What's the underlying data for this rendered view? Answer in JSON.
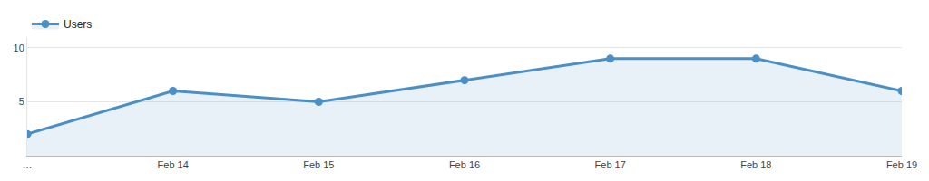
{
  "chart_data": {
    "type": "line",
    "categories": [
      "…",
      "Feb 14",
      "Feb 15",
      "Feb 16",
      "Feb 17",
      "Feb 18",
      "Feb 19"
    ],
    "series": [
      {
        "name": "Users",
        "color": "#4a8fc5",
        "values": [
          2,
          6,
          5,
          7,
          9,
          9,
          6
        ],
        "marker": "circle"
      }
    ],
    "ylim": [
      0,
      11
    ],
    "yticks": [
      5,
      10
    ],
    "grid": true,
    "legend": "top left"
  }
}
